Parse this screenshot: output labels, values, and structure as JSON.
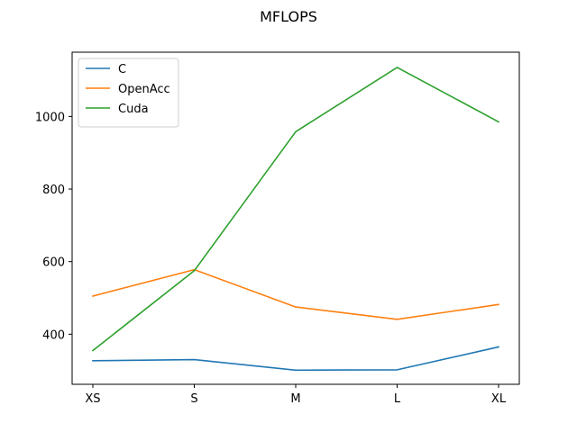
{
  "chart_data": {
    "type": "line",
    "title": "MFLOPS",
    "xlabel": "",
    "ylabel": "",
    "categories": [
      "XS",
      "S",
      "M",
      "L",
      "XL"
    ],
    "ylim": [
      262,
      1177
    ],
    "yticks": [
      400,
      600,
      800,
      1000
    ],
    "grid": false,
    "legend_position": "top-left",
    "series": [
      {
        "name": "C",
        "color": "#1f77b4",
        "values": [
          327,
          330,
          301,
          302,
          365
        ]
      },
      {
        "name": "OpenAcc",
        "color": "#ff7f0e",
        "values": [
          505,
          578,
          475,
          441,
          482
        ]
      },
      {
        "name": "Cuda",
        "color": "#2ca02c",
        "values": [
          355,
          575,
          958,
          1135,
          985
        ]
      }
    ]
  }
}
